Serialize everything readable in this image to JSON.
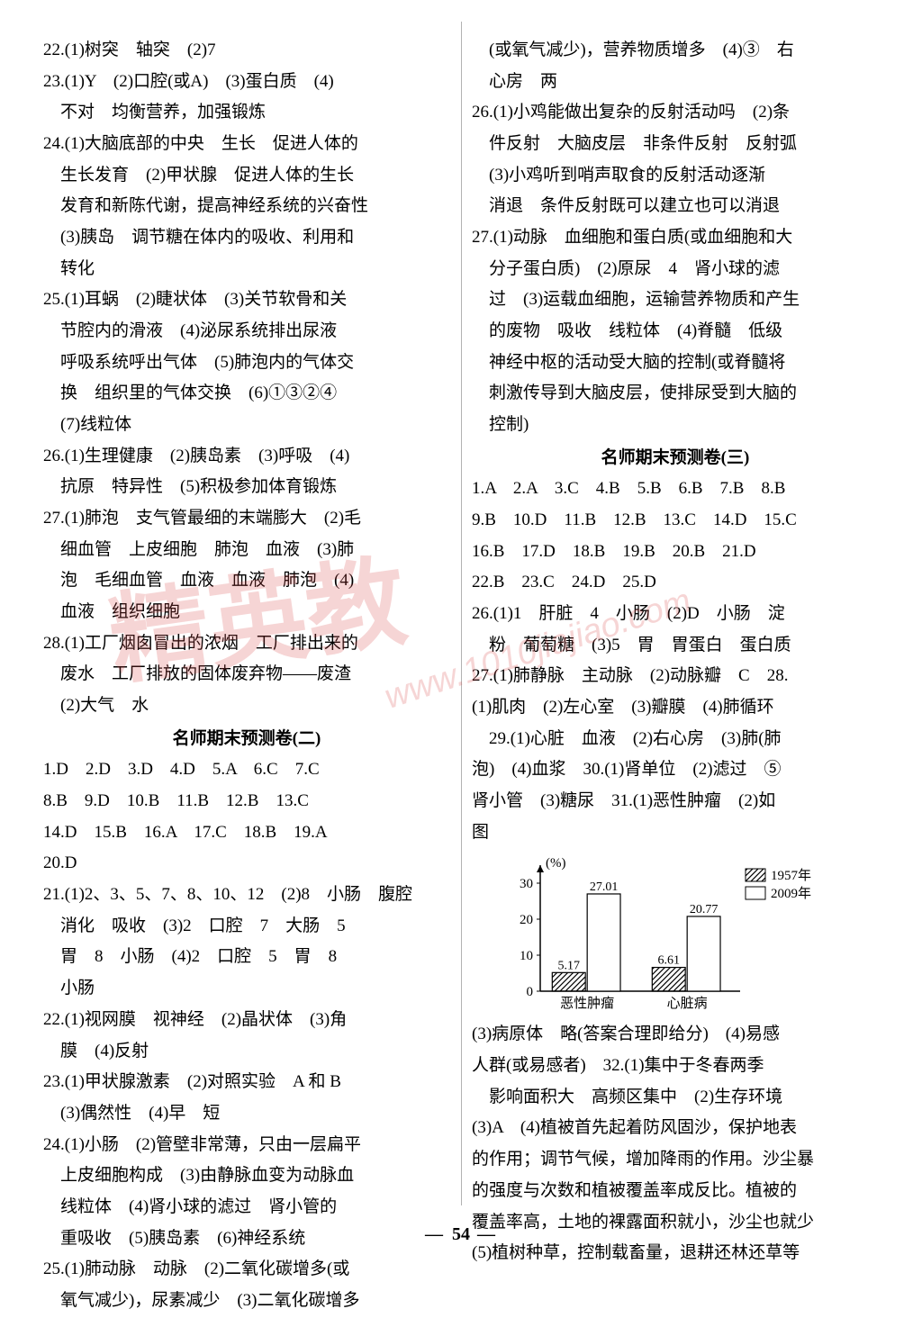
{
  "left": {
    "lines": [
      "22.(1)树突　轴突　(2)7",
      "23.(1)Y　(2)口腔(或A)　(3)蛋白质　(4)",
      "　不对　均衡营养，加强锻炼",
      "24.(1)大脑底部的中央　生长　促进人体的",
      "　生长发育　(2)甲状腺　促进人体的生长",
      "　发育和新陈代谢，提高神经系统的兴奋性",
      "　(3)胰岛　调节糖在体内的吸收、利用和",
      "　转化",
      "25.(1)耳蜗　(2)睫状体　(3)关节软骨和关",
      "　节腔内的滑液　(4)泌尿系统排出尿液",
      "　呼吸系统呼出气体　(5)肺泡内的气体交",
      "　换　组织里的气体交换　(6)①③②④",
      "　(7)线粒体",
      "26.(1)生理健康　(2)胰岛素　(3)呼吸　(4)",
      "　抗原　特异性　(5)积极参加体育锻炼",
      "27.(1)肺泡　支气管最细的末端膨大　(2)毛",
      "　细血管　上皮细胞　肺泡　血液　(3)肺",
      "　泡　毛细血管　血液　血液　肺泡　(4)",
      "　血液　组织细胞",
      "28.(1)工厂烟囱冒出的浓烟　工厂排出来的",
      "　废水　工厂排放的固体废弃物——废渣",
      "　(2)大气　水"
    ],
    "section2_title": "名师期末预测卷(二)",
    "lines2": [
      "1.D　2.D　3.D　4.D　5.A　6.C　7.C",
      "8.B　9.D　10.B　11.B　12.B　13.C",
      "14.D　15.B　16.A　17.C　18.B　19.A",
      "20.D",
      "21.(1)2、3、5、7、8、10、12　(2)8　小肠　腹腔",
      "　消化　吸收　(3)2　口腔　7　大肠　5",
      "　胃　8　小肠　(4)2　口腔　5　胃　8",
      "　小肠",
      "22.(1)视网膜　视神经　(2)晶状体　(3)角",
      "　膜　(4)反射",
      "23.(1)甲状腺激素　(2)对照实验　A 和 B",
      "　(3)偶然性　(4)早　短",
      "24.(1)小肠　(2)管壁非常薄，只由一层扁平",
      "　上皮细胞构成　(3)由静脉血变为动脉血",
      "　线粒体　(4)肾小球的滤过　肾小管的",
      "　重吸收　(5)胰岛素　(6)神经系统",
      "25.(1)肺动脉　动脉　(2)二氧化碳增多(或",
      "　氧气减少)，尿素减少　(3)二氧化碳增多"
    ]
  },
  "right": {
    "lines": [
      "　(或氧气减少)，营养物质增多　(4)③　右",
      "　心房　两",
      "26.(1)小鸡能做出复杂的反射活动吗　(2)条",
      "　件反射　大脑皮层　非条件反射　反射弧",
      "　(3)小鸡听到哨声取食的反射活动逐渐",
      "　消退　条件反射既可以建立也可以消退",
      "27.(1)动脉　血细胞和蛋白质(或血细胞和大",
      "　分子蛋白质)　(2)原尿　4　肾小球的滤",
      "　过　(3)运载血细胞，运输营养物质和产生",
      "　的废物　吸收　线粒体　(4)脊髓　低级",
      "　神经中枢的活动受大脑的控制(或脊髓将",
      "　刺激传导到大脑皮层，使排尿受到大脑的",
      "　控制)"
    ],
    "section3_title": "名师期末预测卷(三)",
    "lines2": [
      "1.A　2.A　3.C　4.B　5.B　6.B　7.B　8.B",
      "9.B　10.D　11.B　12.B　13.C　14.D　15.C",
      "16.B　17.D　18.B　19.B　20.B　21.D",
      "22.B　23.C　24.D　25.D",
      "26.(1)1　肝脏　4　小肠　(2)D　小肠　淀",
      "　粉　葡萄糖　(3)5　胃　胃蛋白　蛋白质",
      "27.(1)肺静脉　主动脉　(2)动脉瓣　C　28.",
      "(1)肌肉　(2)左心室　(3)瓣膜　(4)肺循环",
      "　29.(1)心脏　血液　(2)右心房　(3)肺(肺",
      "泡)　(4)血浆　30.(1)肾单位　(2)滤过　⑤",
      "肾小管　(3)糖尿　31.(1)恶性肿瘤　(2)如",
      "图"
    ],
    "lines3": [
      "(3)病原体　略(答案合理即给分)　(4)易感",
      "人群(或易感者)　32.(1)集中于冬春两季",
      "　影响面积大　高频区集中　(2)生存环境",
      "(3)A　(4)植被首先起着防风固沙，保护地表",
      "的作用；调节气候，增加降雨的作用。沙尘暴",
      "的强度与次数和植被覆盖率成反比。植被的",
      "覆盖率高，土地的裸露面积就小，沙尘也就少",
      "(5)植树种草，控制载畜量，退耕还林还草等"
    ]
  },
  "chart": {
    "type": "bar",
    "ylabel": "(%)",
    "ylim": [
      0,
      35
    ],
    "yticks": [
      0,
      10,
      20,
      30
    ],
    "categories": [
      "恶性肿瘤",
      "心脏病"
    ],
    "series": [
      {
        "name": "1957年",
        "pattern": "hatch",
        "color": "#000",
        "values": [
          5.17,
          6.61
        ]
      },
      {
        "name": "2009年",
        "pattern": "none",
        "color": "#fff",
        "values": [
          27.01,
          20.77
        ]
      }
    ],
    "value_labels": [
      "5.17",
      "27.01",
      "6.61",
      "20.77"
    ],
    "bar_width": 0.35,
    "background_color": "#ffffff",
    "axis_color": "#000000",
    "font_size": 15
  },
  "watermark": {
    "text": "精英教",
    "url": "www.1010jiajiao.com"
  },
  "page_number": "54"
}
